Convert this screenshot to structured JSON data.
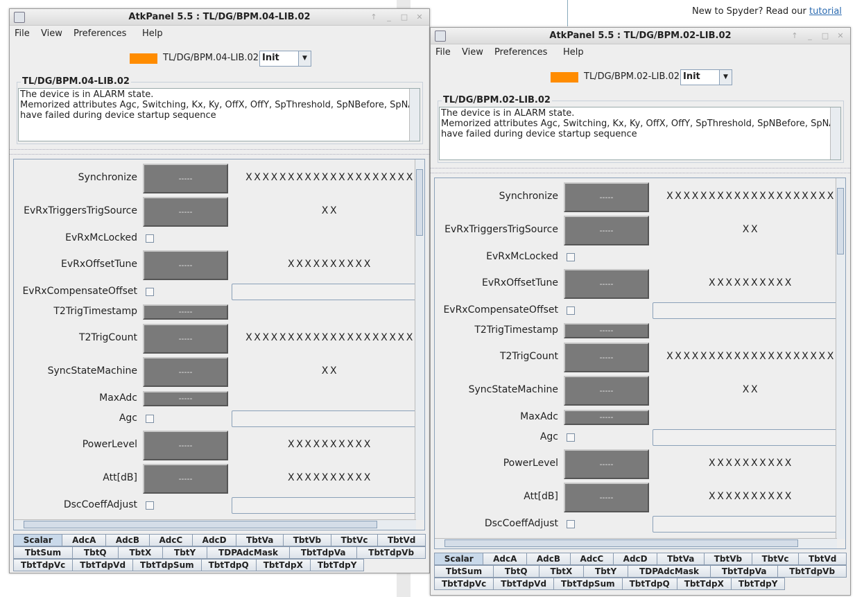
{
  "background": {
    "notice": "New to Spyder? Read our",
    "link": "tutorial"
  },
  "windows": [
    {
      "title": "AtkPanel  5.5  : TL/DG/BPM.04-LIB.02",
      "menu": [
        "File",
        "View",
        "Preferences",
        "Help"
      ],
      "device": "TL/DG/BPM.04-LIB.02",
      "state": "Init",
      "status_title": "TL/DG/BPM.04-LIB.02",
      "status_lines": [
        "The device is in ALARM state.",
        "Memorized attributes Agc, Switching, Kx, Ky, OffX, OffY, SpThreshold, SpNBefore, SpNAfter",
        "have failed during device startup sequence"
      ],
      "attributes": [
        {
          "name": "Synchronize",
          "widget": "box",
          "value": "-----",
          "setpoint": "XXXXXXXXXXXXXXXXXXXX"
        },
        {
          "name": "EvRxTriggersTrigSource",
          "widget": "box",
          "value": "-----",
          "setpoint": "XX"
        },
        {
          "name": "EvRxMcLocked",
          "widget": "check"
        },
        {
          "name": "EvRxOffsetTune",
          "widget": "box",
          "value": "-----",
          "setpoint": "XXXXXXXXXX"
        },
        {
          "name": "EvRxCompensateOffset",
          "widget": "check-combo"
        },
        {
          "name": "T2TrigTimestamp",
          "widget": "small",
          "value": "-----"
        },
        {
          "name": "T2TrigCount",
          "widget": "box",
          "value": "-----",
          "setpoint": "XXXXXXXXXXXXXXXXXXXX"
        },
        {
          "name": "SyncStateMachine",
          "widget": "box",
          "value": "-----",
          "setpoint": "XX"
        },
        {
          "name": "MaxAdc",
          "widget": "small",
          "value": "-----"
        },
        {
          "name": "Agc",
          "widget": "check-combo"
        },
        {
          "name": "PowerLevel",
          "widget": "box",
          "value": "-----",
          "setpoint": "XXXXXXXXXX"
        },
        {
          "name": "Att[dB]",
          "widget": "box",
          "value": "-----",
          "setpoint": "XXXXXXXXXX"
        },
        {
          "name": "DscCoeffAdjust",
          "widget": "check-combo"
        }
      ],
      "tabs": [
        [
          "Scalar",
          "AdcA",
          "AdcB",
          "AdcC",
          "AdcD",
          "TbtVa",
          "TbtVb",
          "TbtVc",
          "TbtVd"
        ],
        [
          "TbtSum",
          "TbtQ",
          "TbtX",
          "TbtY",
          "TDPAdcMask",
          "TbtTdpVa",
          "TbtTdpVb"
        ],
        [
          "TbtTdpVc",
          "TbtTdpVd",
          "TbtTdpSum",
          "TbtTdpQ",
          "TbtTdpX",
          "TbtTdpY"
        ]
      ]
    },
    {
      "title": "AtkPanel  5.5  : TL/DG/BPM.02-LIB.02",
      "menu": [
        "File",
        "View",
        "Preferences",
        "Help"
      ],
      "device": "TL/DG/BPM.02-LIB.02",
      "state": "Init",
      "status_title": "TL/DG/BPM.02-LIB.02",
      "status_lines": [
        "The device is in ALARM state.",
        "Memorized attributes Agc, Switching, Kx, Ky, OffX, OffY, SpThreshold, SpNBefore, SpNAfter",
        "have failed during device startup sequence"
      ],
      "attributes": [
        {
          "name": "Synchronize",
          "widget": "box",
          "value": "-----",
          "setpoint": "XXXXXXXXXXXXXXXXXXXX"
        },
        {
          "name": "EvRxTriggersTrigSource",
          "widget": "box",
          "value": "-----",
          "setpoint": "XX"
        },
        {
          "name": "EvRxMcLocked",
          "widget": "check"
        },
        {
          "name": "EvRxOffsetTune",
          "widget": "box",
          "value": "-----",
          "setpoint": "XXXXXXXXXX"
        },
        {
          "name": "EvRxCompensateOffset",
          "widget": "check-combo"
        },
        {
          "name": "T2TrigTimestamp",
          "widget": "small",
          "value": "-----"
        },
        {
          "name": "T2TrigCount",
          "widget": "box",
          "value": "-----",
          "setpoint": "XXXXXXXXXXXXXXXXXXXX"
        },
        {
          "name": "SyncStateMachine",
          "widget": "box",
          "value": "-----",
          "setpoint": "XX"
        },
        {
          "name": "MaxAdc",
          "widget": "small",
          "value": "-----"
        },
        {
          "name": "Agc",
          "widget": "check-combo"
        },
        {
          "name": "PowerLevel",
          "widget": "box",
          "value": "-----",
          "setpoint": "XXXXXXXXXX"
        },
        {
          "name": "Att[dB]",
          "widget": "box",
          "value": "-----",
          "setpoint": "XXXXXXXXXX"
        },
        {
          "name": "DscCoeffAdjust",
          "widget": "check-combo"
        }
      ],
      "tabs": [
        [
          "Scalar",
          "AdcA",
          "AdcB",
          "AdcC",
          "AdcD",
          "TbtVa",
          "TbtVb",
          "TbtVc",
          "TbtVd"
        ],
        [
          "TbtSum",
          "TbtQ",
          "TbtX",
          "TbtY",
          "TDPAdcMask",
          "TbtTdpVa",
          "TbtTdpVb"
        ],
        [
          "TbtTdpVc",
          "TbtTdpVd",
          "TbtTdpSum",
          "TbtTdpQ",
          "TbtTdpX",
          "TbtTdpY"
        ]
      ]
    }
  ]
}
